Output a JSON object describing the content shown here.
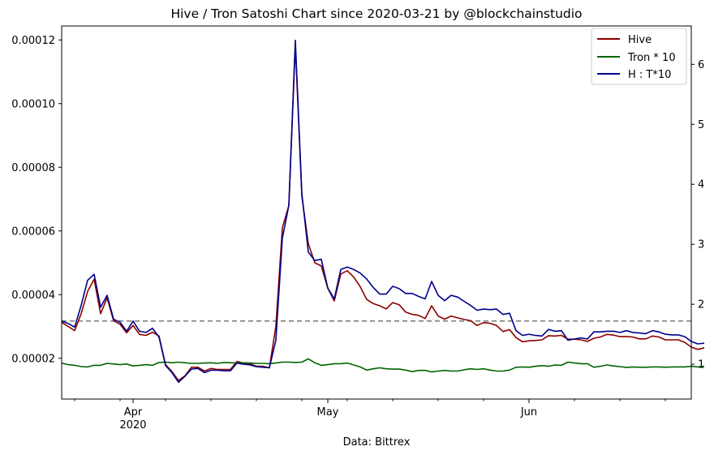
{
  "chart_data": {
    "type": "line",
    "title": "Hive / Tron Satoshi Chart since 2020-03-21 by @blockchainstudio",
    "xlabel": "Data: Bittrex",
    "ylabel_left": "",
    "ylabel_right": "",
    "grid": false,
    "legend_position": "top-right",
    "x_start": "2020-03-21",
    "x_end": "2020-06-26",
    "xlim": [
      "2020-03-21",
      "2020-06-26"
    ],
    "ylim_left": [
      7.2e-06,
      0.0001244
    ],
    "ylim_right": [
      0.42,
      6.64
    ],
    "left_ticks": [
      "0.00002",
      "0.00004",
      "0.00006",
      "0.00008",
      "0.00010",
      "0.00012"
    ],
    "right_ticks": [
      "1",
      "2",
      "3",
      "4",
      "5",
      "6"
    ],
    "x_tick_labels": [
      {
        "date": "2020-04-01",
        "label": "Apr",
        "sublabel": "2020"
      },
      {
        "date": "2020-05-01",
        "label": "May",
        "sublabel": ""
      },
      {
        "date": "2020-06-01",
        "label": "Jun",
        "sublabel": ""
      }
    ],
    "reference_line": {
      "axis": "right",
      "value": 1.72,
      "style": "dashed",
      "color": "#808080"
    },
    "series": [
      {
        "name": "Hive",
        "axis": "left",
        "color": "#8b0000",
        "values": [
          3.13e-05,
          3e-05,
          2.87e-05,
          3.4e-05,
          4.1e-05,
          4.48e-05,
          3.4e-05,
          3.9e-05,
          3.18e-05,
          3.07e-05,
          2.8e-05,
          3.03e-05,
          2.75e-05,
          2.72e-05,
          2.82e-05,
          2.7e-05,
          1.8e-05,
          1.58e-05,
          1.3e-05,
          1.45e-05,
          1.72e-05,
          1.72e-05,
          1.6e-05,
          1.68e-05,
          1.65e-05,
          1.65e-05,
          1.65e-05,
          1.9e-05,
          1.85e-05,
          1.83e-05,
          1.75e-05,
          1.75e-05,
          1.7e-05,
          3e-05,
          6.1e-05,
          6.8e-05,
          0.0001185,
          7.1e-05,
          5.6e-05,
          5e-05,
          4.9e-05,
          4.2e-05,
          3.8e-05,
          4.65e-05,
          4.75e-05,
          4.55e-05,
          4.25e-05,
          3.85e-05,
          3.72e-05,
          3.65e-05,
          3.55e-05,
          3.75e-05,
          3.68e-05,
          3.45e-05,
          3.38e-05,
          3.35e-05,
          3.25e-05,
          3.65e-05,
          3.33e-05,
          3.23e-05,
          3.33e-05,
          3.27e-05,
          3.22e-05,
          3.18e-05,
          3.03e-05,
          3.12e-05,
          3.1e-05,
          3.03e-05,
          2.84e-05,
          2.9e-05,
          2.65e-05,
          2.52e-05,
          2.55e-05,
          2.56e-05,
          2.58e-05,
          2.71e-05,
          2.7e-05,
          2.72e-05,
          2.6e-05,
          2.6e-05,
          2.58e-05,
          2.53e-05,
          2.63e-05,
          2.67e-05,
          2.75e-05,
          2.73e-05,
          2.68e-05,
          2.68e-05,
          2.67e-05,
          2.61e-05,
          2.61e-05,
          2.7e-05,
          2.67e-05,
          2.58e-05,
          2.58e-05,
          2.58e-05,
          2.5e-05,
          2.35e-05,
          2.28e-05,
          2.33e-05
        ]
      },
      {
        "name": "Tron * 10",
        "axis": "left",
        "color": "#006400",
        "values": [
          1.85e-05,
          1.8e-05,
          1.78e-05,
          1.74e-05,
          1.73e-05,
          1.78e-05,
          1.78e-05,
          1.84e-05,
          1.82e-05,
          1.8e-05,
          1.82e-05,
          1.76e-05,
          1.78e-05,
          1.8e-05,
          1.78e-05,
          1.87e-05,
          1.88e-05,
          1.86e-05,
          1.88e-05,
          1.86e-05,
          1.84e-05,
          1.84e-05,
          1.85e-05,
          1.86e-05,
          1.84e-05,
          1.87e-05,
          1.86e-05,
          1.85e-05,
          1.86e-05,
          1.85e-05,
          1.84e-05,
          1.84e-05,
          1.83e-05,
          1.85e-05,
          1.88e-05,
          1.88e-05,
          1.87e-05,
          1.88e-05,
          1.98e-05,
          1.86e-05,
          1.78e-05,
          1.8e-05,
          1.83e-05,
          1.83e-05,
          1.85e-05,
          1.79e-05,
          1.73e-05,
          1.63e-05,
          1.67e-05,
          1.7e-05,
          1.67e-05,
          1.66e-05,
          1.66e-05,
          1.63e-05,
          1.58e-05,
          1.62e-05,
          1.62e-05,
          1.57e-05,
          1.6e-05,
          1.62e-05,
          1.6e-05,
          1.6e-05,
          1.64e-05,
          1.67e-05,
          1.65e-05,
          1.67e-05,
          1.63e-05,
          1.6e-05,
          1.6e-05,
          1.63e-05,
          1.72e-05,
          1.73e-05,
          1.72e-05,
          1.75e-05,
          1.77e-05,
          1.75e-05,
          1.79e-05,
          1.78e-05,
          1.88e-05,
          1.85e-05,
          1.83e-05,
          1.83e-05,
          1.72e-05,
          1.75e-05,
          1.79e-05,
          1.76e-05,
          1.74e-05,
          1.71e-05,
          1.73e-05,
          1.72e-05,
          1.72e-05,
          1.73e-05,
          1.73e-05,
          1.72e-05,
          1.73e-05,
          1.73e-05,
          1.73e-05,
          1.75e-05,
          1.73e-05,
          1.75e-05
        ]
      },
      {
        "name": "H : T*10",
        "axis": "right",
        "color": "#00008b",
        "values": [
          1.72,
          1.68,
          1.62,
          1.98,
          2.4,
          2.5,
          1.95,
          2.15,
          1.75,
          1.7,
          1.55,
          1.72,
          1.55,
          1.53,
          1.6,
          1.45,
          0.98,
          0.86,
          0.7,
          0.8,
          0.92,
          0.93,
          0.86,
          0.9,
          0.9,
          0.89,
          0.89,
          1.02,
          1.0,
          0.99,
          0.96,
          0.95,
          0.94,
          1.4,
          3.1,
          3.65,
          6.4,
          3.85,
          2.87,
          2.73,
          2.75,
          2.27,
          2.09,
          2.58,
          2.62,
          2.58,
          2.52,
          2.42,
          2.28,
          2.17,
          2.17,
          2.3,
          2.26,
          2.18,
          2.18,
          2.13,
          2.09,
          2.38,
          2.15,
          2.06,
          2.15,
          2.12,
          2.05,
          1.98,
          1.9,
          1.92,
          1.91,
          1.92,
          1.83,
          1.85,
          1.56,
          1.48,
          1.5,
          1.48,
          1.47,
          1.58,
          1.55,
          1.56,
          1.4,
          1.42,
          1.44,
          1.42,
          1.54,
          1.54,
          1.55,
          1.55,
          1.53,
          1.56,
          1.53,
          1.52,
          1.51,
          1.56,
          1.54,
          1.5,
          1.49,
          1.49,
          1.46,
          1.38,
          1.34,
          1.35
        ]
      }
    ]
  }
}
